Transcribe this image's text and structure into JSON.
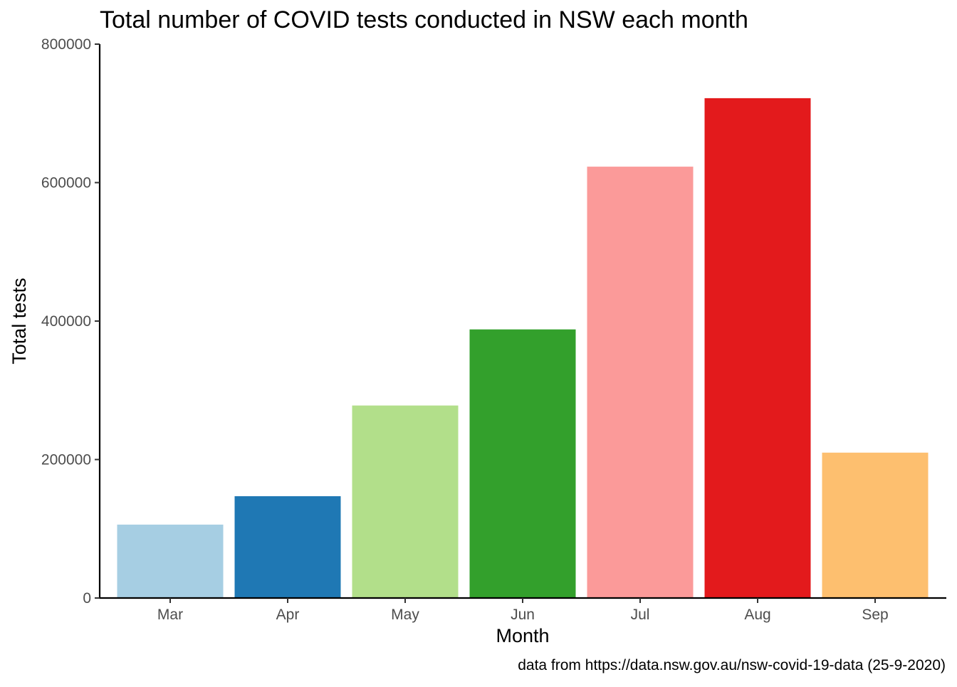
{
  "chart_data": {
    "type": "bar",
    "title": "Total number of COVID tests conducted in NSW each month",
    "xlabel": "Month",
    "ylabel": "Total tests",
    "caption": "data from https://data.nsw.gov.au/nsw-covid-19-data (25-9-2020)",
    "categories": [
      "Mar",
      "Apr",
      "May",
      "Jun",
      "Jul",
      "Aug",
      "Sep"
    ],
    "values": [
      106000,
      147000,
      278000,
      388000,
      623000,
      722000,
      210000
    ],
    "colors": [
      "#A6CEE3",
      "#1F78B4",
      "#B2DF8A",
      "#33A02C",
      "#FB9A99",
      "#E31A1C",
      "#FDBF6F"
    ],
    "ylim": [
      0,
      800000
    ],
    "yticks": [
      "0",
      "200000",
      "400000",
      "600000",
      "800000"
    ],
    "grid": false,
    "legend": "none"
  }
}
